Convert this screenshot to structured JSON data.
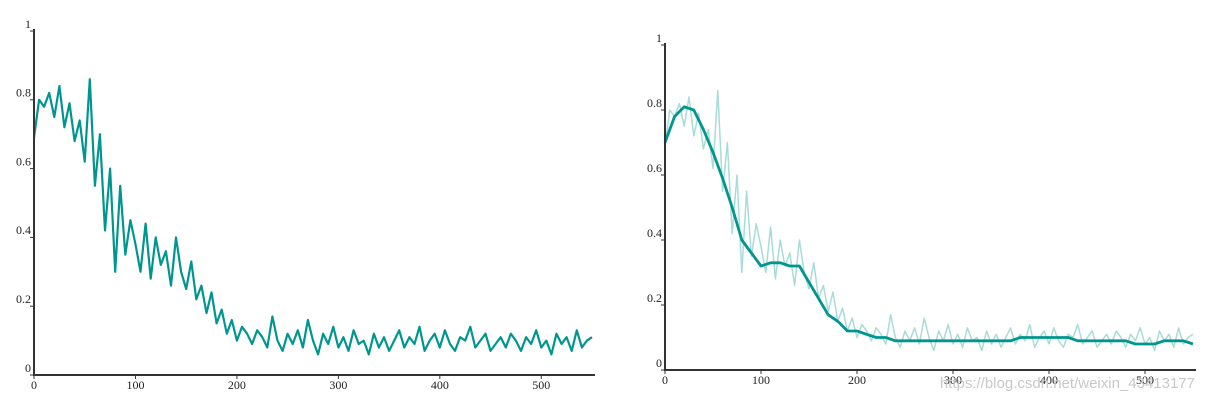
{
  "chart_data": [
    {
      "type": "line",
      "xlim": [
        0,
        550
      ],
      "ylim": [
        0,
        1
      ],
      "xticks": [
        0,
        100,
        200,
        300,
        400,
        500
      ],
      "yticks": [
        0,
        {
          "value": 0.2,
          "label": "0.2"
        },
        {
          "value": 0.4,
          "label": "0.4"
        },
        {
          "value": 0.6,
          "label": "0.6"
        },
        {
          "value": 0.8,
          "label": "0.8"
        },
        1
      ],
      "series": [
        {
          "color": "#00968f",
          "x": [
            0,
            5,
            10,
            15,
            20,
            25,
            30,
            35,
            40,
            45,
            50,
            55,
            60,
            65,
            70,
            75,
            80,
            85,
            90,
            95,
            100,
            105,
            110,
            115,
            120,
            125,
            130,
            135,
            140,
            145,
            150,
            155,
            160,
            165,
            170,
            175,
            180,
            185,
            190,
            195,
            200,
            205,
            210,
            215,
            220,
            225,
            230,
            235,
            240,
            245,
            250,
            255,
            260,
            265,
            270,
            275,
            280,
            285,
            290,
            295,
            300,
            305,
            310,
            315,
            320,
            325,
            330,
            335,
            340,
            345,
            350,
            355,
            360,
            365,
            370,
            375,
            380,
            385,
            390,
            395,
            400,
            405,
            410,
            415,
            420,
            425,
            430,
            435,
            440,
            445,
            450,
            455,
            460,
            465,
            470,
            475,
            480,
            485,
            490,
            495,
            500,
            505,
            510,
            515,
            520,
            525,
            530,
            535,
            540,
            545,
            550
          ],
          "values": [
            0.69,
            0.8,
            0.78,
            0.82,
            0.75,
            0.84,
            0.72,
            0.79,
            0.68,
            0.74,
            0.62,
            0.86,
            0.55,
            0.7,
            0.42,
            0.6,
            0.3,
            0.55,
            0.35,
            0.45,
            0.38,
            0.3,
            0.44,
            0.28,
            0.4,
            0.32,
            0.36,
            0.26,
            0.4,
            0.3,
            0.25,
            0.33,
            0.22,
            0.26,
            0.18,
            0.24,
            0.15,
            0.19,
            0.12,
            0.16,
            0.1,
            0.14,
            0.12,
            0.09,
            0.13,
            0.11,
            0.08,
            0.17,
            0.1,
            0.07,
            0.12,
            0.09,
            0.13,
            0.08,
            0.16,
            0.1,
            0.06,
            0.12,
            0.09,
            0.14,
            0.08,
            0.11,
            0.07,
            0.13,
            0.09,
            0.1,
            0.06,
            0.12,
            0.08,
            0.11,
            0.07,
            0.1,
            0.13,
            0.08,
            0.11,
            0.09,
            0.14,
            0.07,
            0.1,
            0.12,
            0.08,
            0.13,
            0.09,
            0.07,
            0.11,
            0.1,
            0.14,
            0.08,
            0.1,
            0.12,
            0.07,
            0.09,
            0.11,
            0.08,
            0.12,
            0.1,
            0.07,
            0.11,
            0.09,
            0.13,
            0.08,
            0.1,
            0.06,
            0.12,
            0.09,
            0.11,
            0.07,
            0.13,
            0.08,
            0.1,
            0.11
          ]
        }
      ]
    },
    {
      "type": "line",
      "xlim": [
        0,
        550
      ],
      "ylim": [
        0,
        1
      ],
      "xticks": [
        0,
        100,
        200,
        300,
        400,
        500
      ],
      "yticks": [
        0,
        {
          "value": 0.2,
          "label": "0.2"
        },
        {
          "value": 0.4,
          "label": "0.4"
        },
        {
          "value": 0.6,
          "label": "0.6"
        },
        {
          "value": 0.8,
          "label": "0.8"
        },
        1
      ],
      "watermark": "https://blog.csdn.net/weixin_43413177",
      "series": [
        {
          "color": "#a8dcd8",
          "x": [
            0,
            5,
            10,
            15,
            20,
            25,
            30,
            35,
            40,
            45,
            50,
            55,
            60,
            65,
            70,
            75,
            80,
            85,
            90,
            95,
            100,
            105,
            110,
            115,
            120,
            125,
            130,
            135,
            140,
            145,
            150,
            155,
            160,
            165,
            170,
            175,
            180,
            185,
            190,
            195,
            200,
            205,
            210,
            215,
            220,
            225,
            230,
            235,
            240,
            245,
            250,
            255,
            260,
            265,
            270,
            275,
            280,
            285,
            290,
            295,
            300,
            305,
            310,
            315,
            320,
            325,
            330,
            335,
            340,
            345,
            350,
            355,
            360,
            365,
            370,
            375,
            380,
            385,
            390,
            395,
            400,
            405,
            410,
            415,
            420,
            425,
            430,
            435,
            440,
            445,
            450,
            455,
            460,
            465,
            470,
            475,
            480,
            485,
            490,
            495,
            500,
            505,
            510,
            515,
            520,
            525,
            530,
            535,
            540,
            545,
            550
          ],
          "values": [
            0.69,
            0.8,
            0.78,
            0.82,
            0.75,
            0.84,
            0.72,
            0.79,
            0.68,
            0.74,
            0.62,
            0.86,
            0.55,
            0.7,
            0.42,
            0.6,
            0.3,
            0.55,
            0.35,
            0.45,
            0.38,
            0.3,
            0.44,
            0.28,
            0.4,
            0.32,
            0.36,
            0.26,
            0.4,
            0.3,
            0.25,
            0.33,
            0.22,
            0.26,
            0.18,
            0.24,
            0.15,
            0.19,
            0.12,
            0.16,
            0.1,
            0.14,
            0.12,
            0.09,
            0.13,
            0.11,
            0.08,
            0.17,
            0.1,
            0.07,
            0.12,
            0.09,
            0.13,
            0.08,
            0.16,
            0.1,
            0.06,
            0.12,
            0.09,
            0.14,
            0.08,
            0.11,
            0.07,
            0.13,
            0.09,
            0.1,
            0.06,
            0.12,
            0.08,
            0.11,
            0.07,
            0.1,
            0.13,
            0.08,
            0.11,
            0.09,
            0.14,
            0.07,
            0.1,
            0.12,
            0.08,
            0.13,
            0.09,
            0.07,
            0.11,
            0.1,
            0.14,
            0.08,
            0.1,
            0.12,
            0.07,
            0.09,
            0.11,
            0.08,
            0.12,
            0.1,
            0.07,
            0.11,
            0.09,
            0.13,
            0.08,
            0.1,
            0.06,
            0.12,
            0.09,
            0.11,
            0.07,
            0.13,
            0.08,
            0.1,
            0.11
          ]
        },
        {
          "color": "#00968f",
          "x": [
            0,
            10,
            20,
            30,
            40,
            50,
            60,
            70,
            80,
            90,
            100,
            110,
            120,
            130,
            140,
            150,
            160,
            170,
            180,
            190,
            200,
            210,
            220,
            230,
            240,
            250,
            260,
            270,
            280,
            290,
            300,
            310,
            320,
            330,
            340,
            350,
            360,
            370,
            380,
            390,
            400,
            410,
            420,
            430,
            440,
            450,
            460,
            470,
            480,
            490,
            500,
            510,
            520,
            530,
            540,
            550
          ],
          "values": [
            0.7,
            0.78,
            0.81,
            0.8,
            0.74,
            0.67,
            0.59,
            0.5,
            0.4,
            0.36,
            0.32,
            0.33,
            0.33,
            0.32,
            0.32,
            0.27,
            0.22,
            0.17,
            0.15,
            0.12,
            0.12,
            0.11,
            0.1,
            0.1,
            0.09,
            0.09,
            0.09,
            0.09,
            0.09,
            0.09,
            0.09,
            0.09,
            0.09,
            0.09,
            0.09,
            0.09,
            0.09,
            0.1,
            0.1,
            0.1,
            0.1,
            0.1,
            0.1,
            0.09,
            0.09,
            0.09,
            0.09,
            0.09,
            0.09,
            0.08,
            0.08,
            0.08,
            0.09,
            0.09,
            0.09,
            0.08
          ]
        }
      ]
    }
  ]
}
